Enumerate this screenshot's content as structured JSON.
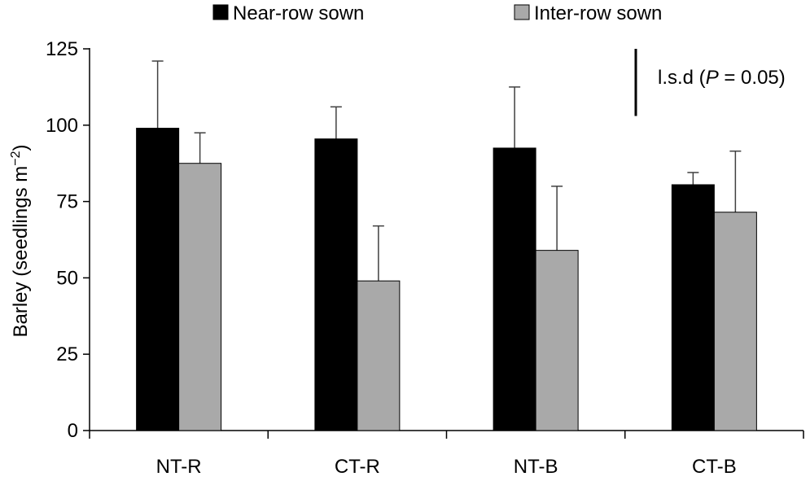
{
  "chart_data": {
    "type": "bar",
    "categories": [
      "NT-R",
      "CT-R",
      "NT-B",
      "CT-B"
    ],
    "series": [
      {
        "name": "Near-row sown",
        "values": [
          99,
          95.5,
          92.5,
          80.5
        ],
        "error_upper": [
          121,
          106,
          112.5,
          84.5
        ],
        "color": "#000000"
      },
      {
        "name": "Inter-row sown",
        "values": [
          87.5,
          49,
          59,
          71.5
        ],
        "error_upper": [
          97.5,
          67,
          80,
          91.5
        ],
        "color": "#a9a9a9"
      }
    ],
    "ylabel_text": "Barley (seedlings m",
    "ylabel_sup": "−2",
    "ylabel_close": ")",
    "ylim": [
      0,
      125
    ],
    "yticks": [
      0,
      25,
      50,
      75,
      100,
      125
    ],
    "lsd": {
      "label_pre": "l.s.d (",
      "label_p": "P",
      "label_post": " = 0.05)",
      "value": 22
    },
    "legend_position": "top-center",
    "grid": false
  }
}
